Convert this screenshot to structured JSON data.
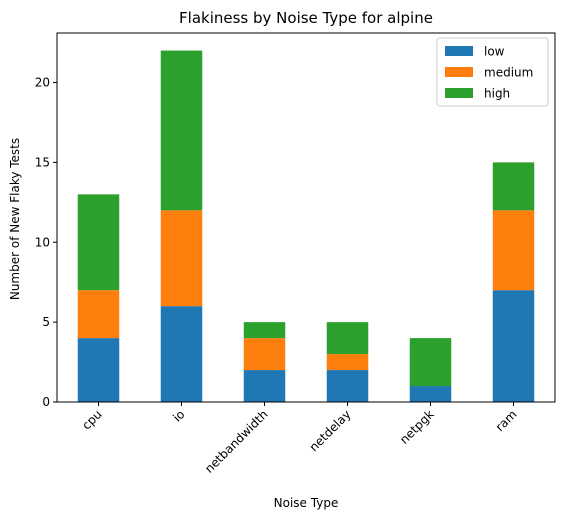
{
  "chart_data": {
    "type": "bar",
    "stacked": true,
    "title": "Flakiness by Noise Type for alpine",
    "xlabel": "Noise Type",
    "ylabel": "Number of New Flaky Tests",
    "categories": [
      "cpu",
      "io",
      "netbandwidth",
      "netdelay",
      "netpgk",
      "ram"
    ],
    "series": [
      {
        "name": "low",
        "color": "#1f77b4",
        "values": [
          4,
          6,
          2,
          2,
          1,
          7
        ]
      },
      {
        "name": "medium",
        "color": "#ff7f0e",
        "values": [
          3,
          6,
          2,
          1,
          0,
          5
        ]
      },
      {
        "name": "high",
        "color": "#2ca02c",
        "values": [
          6,
          10,
          1,
          2,
          3,
          3
        ]
      }
    ],
    "ylim": [
      0,
      23.1
    ],
    "yticks": [
      0,
      5,
      10,
      15,
      20
    ],
    "grid": false,
    "legend": "top-right"
  }
}
